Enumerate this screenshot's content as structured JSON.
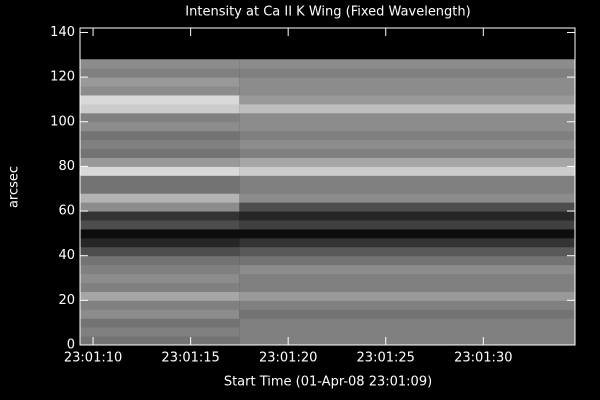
{
  "chart_data": {
    "type": "heatmap",
    "title": "Intensity at Ca II K Wing (Fixed Wavelength)",
    "xlabel": "Start Time (01-Apr-08 23:01:09)",
    "ylabel": "arcsec",
    "xlim": [
      0.33,
      25.7
    ],
    "xticks": [
      {
        "value": 1,
        "label": "23:01:10"
      },
      {
        "value": 6,
        "label": "23:01:15"
      },
      {
        "value": 11,
        "label": "23:01:20"
      },
      {
        "value": 16,
        "label": "23:01:25"
      },
      {
        "value": 21,
        "label": "23:01:30"
      }
    ],
    "ylim": [
      0,
      142
    ],
    "yticks": [
      0,
      20,
      40,
      60,
      80,
      100,
      120,
      140
    ],
    "x_edges": [
      0.33,
      8.5,
      25.7
    ],
    "y_edges": [
      0,
      4,
      8,
      12,
      16,
      20,
      24,
      28,
      32,
      36,
      40,
      44,
      48,
      52,
      56,
      60,
      64,
      68,
      72,
      76,
      80,
      84,
      88,
      92,
      96,
      100,
      104,
      108,
      112,
      116,
      120,
      124,
      128
    ],
    "z": [
      [
        0.45,
        0.5
      ],
      [
        0.5,
        0.5
      ],
      [
        0.45,
        0.5
      ],
      [
        0.55,
        0.45
      ],
      [
        0.5,
        0.5
      ],
      [
        0.65,
        0.6
      ],
      [
        0.5,
        0.5
      ],
      [
        0.55,
        0.5
      ],
      [
        0.5,
        0.55
      ],
      [
        0.45,
        0.45
      ],
      [
        0.3,
        0.35
      ],
      [
        0.15,
        0.2
      ],
      [
        0.05,
        0.05
      ],
      [
        0.3,
        0.25
      ],
      [
        0.2,
        0.15
      ],
      [
        0.55,
        0.3
      ],
      [
        0.7,
        0.55
      ],
      [
        0.45,
        0.5
      ],
      [
        0.45,
        0.5
      ],
      [
        0.85,
        0.8
      ],
      [
        0.6,
        0.65
      ],
      [
        0.45,
        0.5
      ],
      [
        0.5,
        0.55
      ],
      [
        0.45,
        0.5
      ],
      [
        0.55,
        0.55
      ],
      [
        0.5,
        0.55
      ],
      [
        0.8,
        0.75
      ],
      [
        0.85,
        0.6
      ],
      [
        0.55,
        0.55
      ],
      [
        0.6,
        0.55
      ],
      [
        0.5,
        0.5
      ],
      [
        0.55,
        0.55
      ]
    ]
  }
}
